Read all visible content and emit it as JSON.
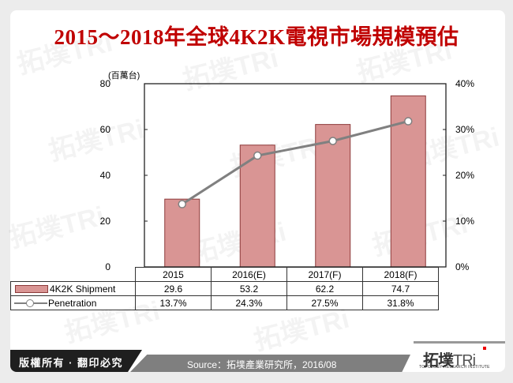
{
  "title": "2015～2018年全球4K2K電視市場規模預估",
  "unit_label": "(百萬台)",
  "left_axis": {
    "ticks": [
      "80",
      "60",
      "40",
      "20",
      "0"
    ]
  },
  "right_axis": {
    "ticks": [
      "40%",
      "30%",
      "20%",
      "10%",
      "0%"
    ]
  },
  "table": {
    "categories": [
      "2015",
      "2016(E)",
      "2017(F)",
      "2018(F)"
    ],
    "rows": [
      {
        "label": "4K2K Shipment",
        "values": [
          "29.6",
          "53.2",
          "62.2",
          "74.7"
        ]
      },
      {
        "label": "Penetration",
        "values": [
          "13.7%",
          "24.3%",
          "27.5%",
          "31.8%"
        ]
      }
    ]
  },
  "footer": {
    "copyright": "版權所有 · 翻印必究",
    "source": "Source：拓墣產業研究所，2016/08",
    "logo_cn": "拓墣",
    "logo_en": "TRi",
    "logo_sub": "TOPOLOGY RESEARCH INSTITUTE"
  },
  "colors": {
    "title": "#c00000",
    "bar_fill": "#d99594",
    "bar_border": "#8c3a3a",
    "line": "#808080"
  },
  "chart_data": {
    "type": "bar",
    "title": "2015～2018年全球4K2K電視市場規模預估",
    "categories": [
      "2015",
      "2016(E)",
      "2017(F)",
      "2018(F)"
    ],
    "series": [
      {
        "name": "4K2K Shipment",
        "type": "bar",
        "axis": "left",
        "values": [
          29.6,
          53.2,
          62.2,
          74.7
        ]
      },
      {
        "name": "Penetration",
        "type": "line",
        "axis": "right",
        "values": [
          13.7,
          24.3,
          27.5,
          31.8
        ],
        "unit": "%"
      }
    ],
    "ylabel": "(百萬台)",
    "ylim": [
      0,
      80
    ],
    "y2lim": [
      0,
      40
    ],
    "y_ticks": [
      0,
      20,
      40,
      60,
      80
    ],
    "y2_ticks": [
      "0%",
      "10%",
      "20%",
      "30%",
      "40%"
    ],
    "legend_position": "data table below chart",
    "grid": false,
    "source": "Source：拓墣產業研究所，2016/08"
  }
}
